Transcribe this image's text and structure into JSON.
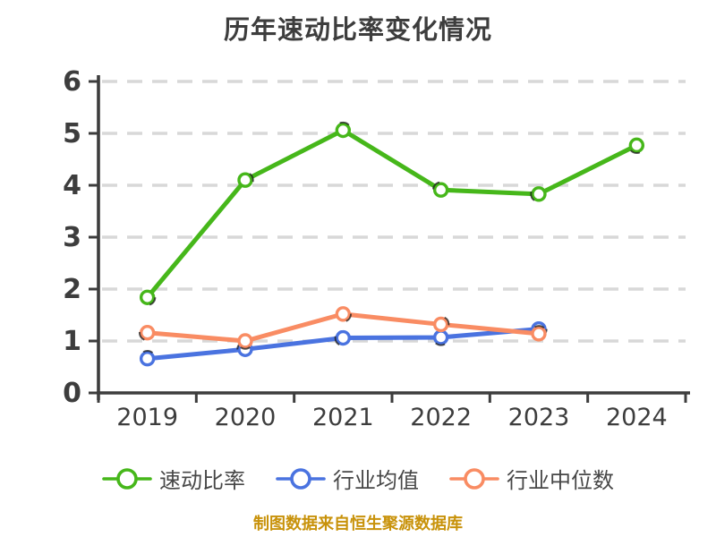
{
  "title": "历年速动比率变化情况",
  "source_note": "制图数据来自恒生聚源数据库",
  "chart_data": {
    "type": "line",
    "title": "历年速动比率变化情况",
    "categories": [
      "2019",
      "2020",
      "2021",
      "2022",
      "2023",
      "2024"
    ],
    "series": [
      {
        "name": "速动比率",
        "color": "#46b71a",
        "values": [
          1.84,
          4.1,
          5.06,
          3.91,
          3.83,
          4.77
        ]
      },
      {
        "name": "行业均值",
        "color": "#4a73e0",
        "values": [
          0.66,
          0.84,
          1.06,
          1.07,
          1.23,
          null
        ]
      },
      {
        "name": "行业中位数",
        "color": "#f98c63",
        "values": [
          1.16,
          1.0,
          1.52,
          1.32,
          1.14,
          null
        ]
      }
    ],
    "ylim": [
      0,
      6
    ],
    "yticks": [
      0,
      1,
      2,
      3,
      4,
      5,
      6
    ],
    "grid": "horizontal-dashed",
    "legend_position": "bottom",
    "marker": "open-circle"
  },
  "colors": {
    "background": "#ffffff",
    "axis": "#3d3d3d",
    "tick_label": "#3d3d3d",
    "gridline": "#d8d8d8",
    "marker_fill": "#ffffff",
    "marker_accent": "#1c1c1c",
    "legend_text": "#474747",
    "caption": "#c8920a"
  }
}
